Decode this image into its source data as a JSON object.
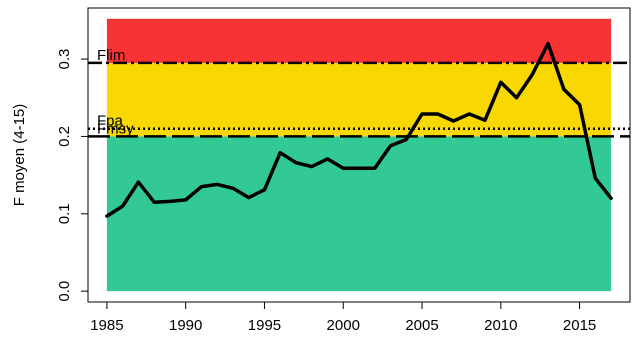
{
  "chart_data": {
    "type": "line",
    "ylabel": "F moyen (4-15)",
    "xlim": [
      1983.8,
      2018.2
    ],
    "ylim": [
      -0.014,
      0.366
    ],
    "x_ticks": [
      1985,
      1990,
      1995,
      2000,
      2005,
      2010,
      2015
    ],
    "y_ticks": [
      0.0,
      0.1,
      0.2,
      0.3
    ],
    "y_tick_labels": [
      "0.0",
      "0.1",
      "0.2",
      "0.3"
    ],
    "zones": [
      {
        "name": "green",
        "from": 0.0,
        "to": 0.2,
        "color": "#33C995"
      },
      {
        "name": "yellow",
        "from": 0.2,
        "to": 0.295,
        "color": "#F8D800"
      },
      {
        "name": "red",
        "from": 0.295,
        "to": 0.352,
        "color": "#F83333"
      }
    ],
    "zone_x_range": [
      1985,
      2017
    ],
    "reference_lines": [
      {
        "label": "Flim",
        "value": 0.295,
        "style": "dashdot"
      },
      {
        "label": "Fpa",
        "value": 0.21,
        "style": "dotted"
      },
      {
        "label": "Fmsy",
        "value": 0.2,
        "style": "longdash"
      }
    ],
    "series": [
      {
        "color": "#000000",
        "x": [
          1985,
          1986,
          1987,
          1988,
          1989,
          1990,
          1991,
          1992,
          1993,
          1994,
          1995,
          1996,
          1997,
          1998,
          1999,
          2000,
          2001,
          2002,
          2003,
          2004,
          2005,
          2006,
          2007,
          2008,
          2009,
          2010,
          2011,
          2012,
          2013,
          2014,
          2015,
          2016,
          2017
        ],
        "values": [
          0.097,
          0.11,
          0.141,
          0.115,
          0.116,
          0.118,
          0.135,
          0.138,
          0.133,
          0.121,
          0.131,
          0.179,
          0.166,
          0.161,
          0.171,
          0.159,
          0.159,
          0.159,
          0.188,
          0.196,
          0.229,
          0.229,
          0.22,
          0.229,
          0.221,
          0.27,
          0.25,
          0.28,
          0.32,
          0.261,
          0.241,
          0.146,
          0.12
        ]
      }
    ]
  }
}
